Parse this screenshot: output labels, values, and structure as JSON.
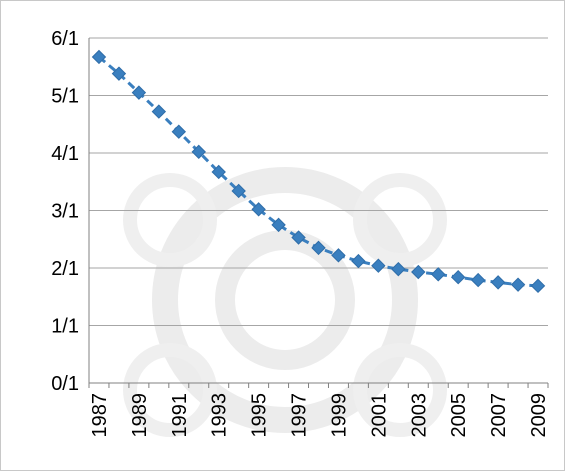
{
  "chart_data": {
    "type": "line",
    "series": [
      {
        "color": "#3a7fbf",
        "line_style": "dashed",
        "marker": "diamond",
        "x": [
          "1987",
          "1988",
          "1989",
          "1990",
          "1991",
          "1992",
          "1993",
          "1994",
          "1995",
          "1996",
          "1997",
          "1998",
          "1999",
          "2000",
          "2001",
          "2002",
          "2003",
          "2004",
          "2005",
          "2006",
          "2007",
          "2008",
          "2009"
        ],
        "values": [
          5.67,
          5.38,
          5.05,
          4.72,
          4.37,
          4.02,
          3.67,
          3.34,
          3.02,
          2.75,
          2.53,
          2.35,
          2.22,
          2.12,
          2.04,
          1.98,
          1.93,
          1.89,
          1.84,
          1.79,
          1.75,
          1.71,
          1.69
        ]
      }
    ],
    "x_tick_labels": [
      "1987",
      "1989",
      "1991",
      "1993",
      "1995",
      "1997",
      "1999",
      "2001",
      "2003",
      "2005",
      "2007",
      "2009"
    ],
    "y_tick_labels": [
      "0/1",
      "1/1",
      "2/1",
      "3/1",
      "4/1",
      "5/1",
      "6/1"
    ],
    "ylim": [
      0,
      6
    ],
    "grid": "horizontal",
    "title": "",
    "xlabel": "",
    "ylabel": "",
    "legend": "none",
    "colors": {
      "line": "#3a7fbf",
      "marker": "#3a7fbf",
      "grid": "#a6a6a6"
    }
  }
}
